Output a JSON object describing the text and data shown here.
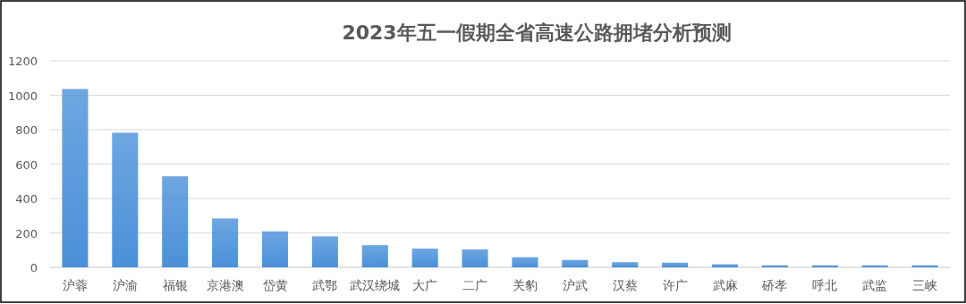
{
  "chart_data": {
    "type": "bar",
    "title": "2023年五一假期全省高速公路拥堵分析预测",
    "categories": [
      "沪蓉",
      "沪渝",
      "福银",
      "京港澳",
      "岱黄",
      "武鄂",
      "武汉绕城",
      "大广",
      "二广",
      "关豹",
      "沪武",
      "汉蔡",
      "许广",
      "武麻",
      "硚孝",
      "呼北",
      "武监",
      "三峡"
    ],
    "values": [
      1036,
      782,
      529,
      284,
      209,
      180,
      129,
      109,
      104,
      59,
      43,
      30,
      27,
      18,
      12,
      12,
      12,
      12
    ],
    "color": "#4a90d9",
    "ylim": [
      0,
      1200
    ],
    "yticks": [
      0,
      200,
      400,
      600,
      800,
      1000,
      1200
    ],
    "grid": "y"
  }
}
